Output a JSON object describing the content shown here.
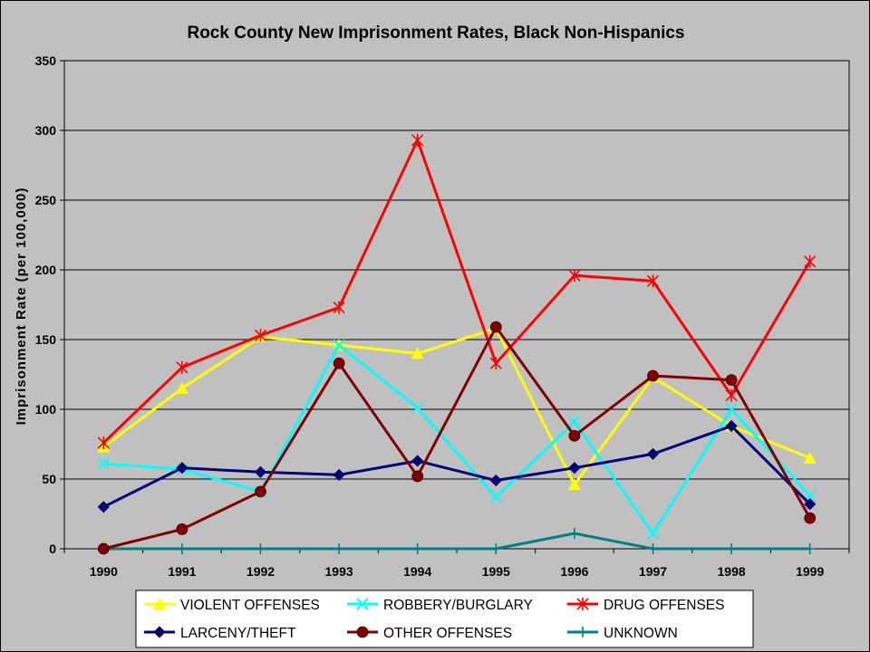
{
  "chart_data": {
    "type": "line",
    "title": "Rock County New Imprisonment Rates, Black Non-Hispanics",
    "xlabel": "",
    "ylabel": "Imprisonment Rate (per 100,000)",
    "x": [
      "1990",
      "1991",
      "1992",
      "1993",
      "1994",
      "1995",
      "1996",
      "1997",
      "1998",
      "1999"
    ],
    "ylim": [
      0,
      350
    ],
    "yticks": [
      0,
      50,
      100,
      150,
      200,
      250,
      300,
      350
    ],
    "grid": "horizontal",
    "legend_position": "bottom",
    "series": [
      {
        "name": "VIOLENT OFFENSES",
        "color": "#ffff00",
        "marker": "triangle",
        "values": [
          73,
          115,
          152,
          146,
          140,
          158,
          46,
          123,
          88,
          65
        ]
      },
      {
        "name": "ROBBERY/BURGLARY",
        "color": "#00ffff",
        "marker": "x",
        "values": [
          61,
          57,
          41,
          146,
          101,
          37,
          91,
          11,
          100,
          38
        ]
      },
      {
        "name": "DRUG OFFENSES",
        "color": "#ff0000",
        "marker": "star",
        "values": [
          76,
          130,
          153,
          173,
          293,
          133,
          196,
          192,
          110,
          206
        ]
      },
      {
        "name": "LARCENY/THEFT",
        "color": "#000080",
        "marker": "diamond",
        "values": [
          30,
          58,
          55,
          53,
          63,
          49,
          58,
          68,
          88,
          32
        ]
      },
      {
        "name": "OTHER OFFENSES",
        "color": "#800000",
        "marker": "circle",
        "values": [
          0,
          14,
          41,
          133,
          52,
          159,
          81,
          124,
          121,
          22
        ]
      },
      {
        "name": "UNKNOWN",
        "color": "#008080",
        "marker": "plus",
        "values": [
          0,
          0,
          0,
          0,
          0,
          0,
          11,
          0,
          0,
          0
        ]
      }
    ]
  }
}
